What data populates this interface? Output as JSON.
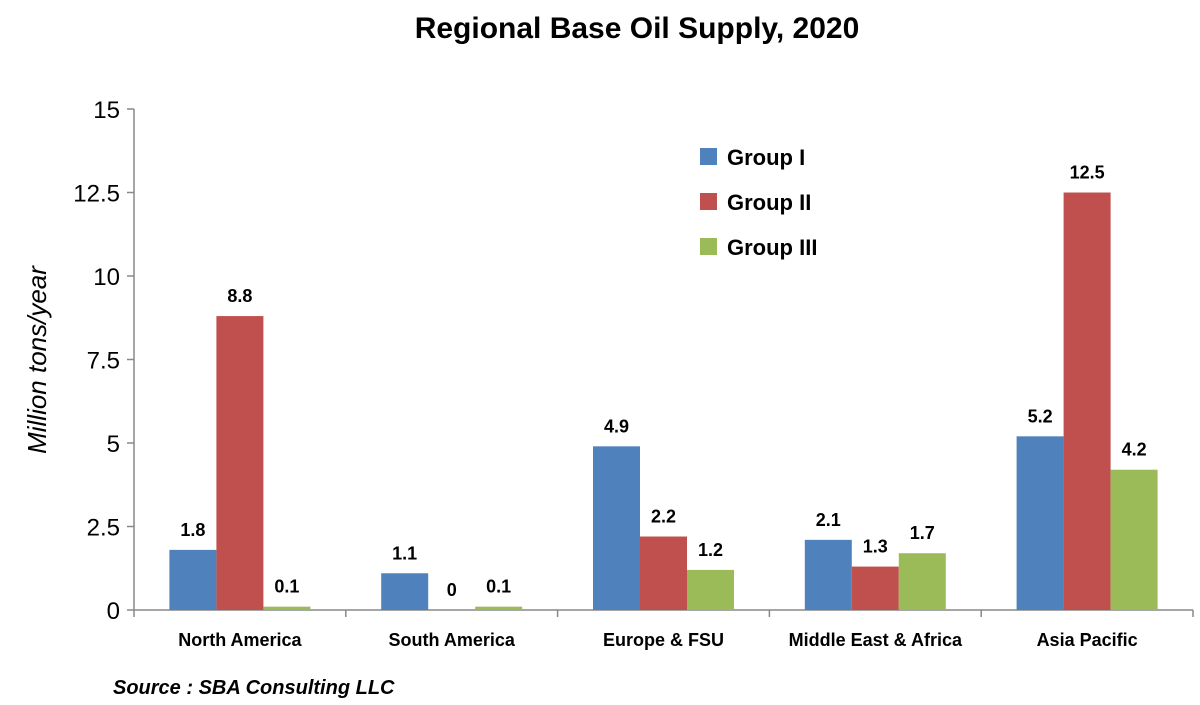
{
  "chart_data": {
    "type": "bar",
    "title": "Regional Base Oil Supply, 2020",
    "ylabel": "Million tons/year",
    "xlabel": "",
    "categories": [
      "North America",
      "South America",
      "Europe & FSU",
      "Middle East & Africa",
      "Asia Pacific"
    ],
    "series": [
      {
        "name": "Group I",
        "color": "#4f81bd",
        "values": [
          1.8,
          1.1,
          4.9,
          2.1,
          5.2
        ]
      },
      {
        "name": "Group II",
        "color": "#c0504d",
        "values": [
          8.8,
          0,
          2.2,
          1.3,
          12.5
        ]
      },
      {
        "name": "Group III",
        "color": "#9bbb59",
        "values": [
          0.1,
          0.1,
          1.2,
          1.7,
          4.2
        ]
      }
    ],
    "ylim": [
      0,
      15
    ],
    "yticks": [
      "0",
      "2.5",
      "5",
      "7.5",
      "10",
      "12.5",
      "15"
    ],
    "ytick_values": [
      0,
      2.5,
      5,
      7.5,
      10,
      12.5,
      15
    ],
    "grid": false,
    "legend_position": "top-right"
  },
  "source": "Source : SBA Consulting LLC"
}
